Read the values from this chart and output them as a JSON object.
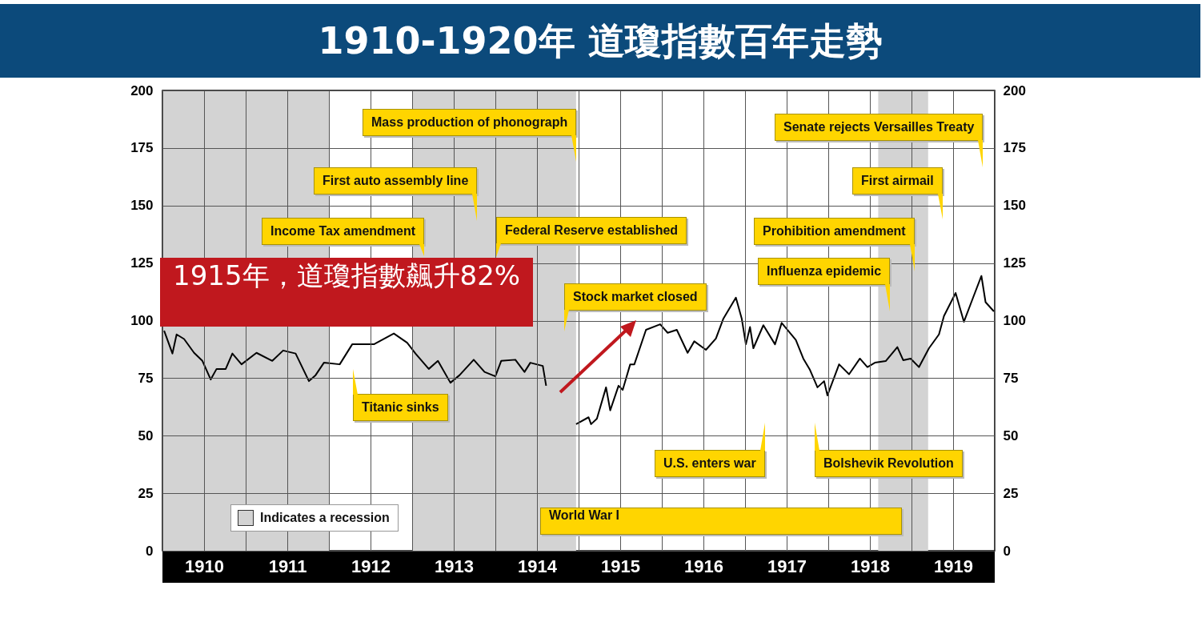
{
  "chart_data": {
    "type": "line",
    "title": "1910-1920年 道瓊指數百年走勢",
    "x": [
      1910.02,
      1910.12,
      1910.17,
      1910.26,
      1910.38,
      1910.48,
      1910.58,
      1910.65,
      1910.76,
      1910.84,
      1910.95,
      1911.13,
      1911.32,
      1911.45,
      1911.6,
      1911.76,
      1911.84,
      1911.94,
      1912.13,
      1912.28,
      1912.54,
      1912.78,
      1912.94,
      1913.04,
      1913.2,
      1913.31,
      1913.46,
      1913.57,
      1913.74,
      1913.87,
      1914.0,
      1914.07,
      1914.24,
      1914.35,
      1914.42,
      1914.57,
      1914.61,
      1914.8,
      1914.97,
      1915.12,
      1915.15,
      1915.22,
      1915.33,
      1915.38,
      1915.48,
      1915.53,
      1915.62,
      1915.67,
      1915.81,
      1915.98,
      1916.07,
      1916.18,
      1916.31,
      1916.39,
      1916.53,
      1916.65,
      1916.74,
      1916.89,
      1916.96,
      1917.01,
      1917.06,
      1917.1,
      1917.22,
      1917.36,
      1917.44,
      1917.61,
      1917.7,
      1917.78,
      1917.87,
      1917.95,
      1917.99,
      1918.13,
      1918.25,
      1918.38,
      1918.47,
      1918.56,
      1918.69,
      1918.83,
      1918.9,
      1918.99,
      1919.09,
      1919.21,
      1919.33,
      1919.39,
      1919.53,
      1919.63,
      1919.74,
      1919.84,
      1919.89,
      1919.99
    ],
    "series": [
      {
        "color": "#000000",
        "values": [
          95.6,
          85.7,
          94,
          92,
          86,
          82.5,
          74.4,
          79,
          79,
          85.7,
          81,
          86,
          82.5,
          87,
          85.7,
          73.7,
          76.3,
          81.7,
          81,
          89.7,
          89.7,
          94.4,
          90.4,
          85.7,
          79,
          82.5,
          73,
          76.3,
          83,
          77.7,
          75.8,
          82.5,
          83,
          77.7,
          81.7,
          80.3,
          71.7,
          null,
          55,
          58,
          55,
          57.4,
          71,
          61,
          71.7,
          69.9,
          81,
          81,
          96,
          98.4,
          94.7,
          96,
          86,
          91,
          87.3,
          92.2,
          100.9,
          110,
          100.9,
          89.7,
          97.2,
          88,
          98,
          89.7,
          99,
          91.6,
          83.5,
          78.6,
          71,
          73.7,
          67.5,
          81,
          76.7,
          83.5,
          79.8,
          81.7,
          82.4,
          88.5,
          82.8,
          83.5,
          79.8,
          88,
          94,
          102,
          112,
          99.5,
          110,
          119.4,
          108,
          104
        ]
      }
    ],
    "xlim": [
      1910,
      1920
    ],
    "xticks": [
      {
        "value": 1910,
        "label": null
      },
      {
        "value": 1910.5,
        "label": "1910"
      },
      {
        "value": 1911,
        "label": null
      },
      {
        "value": 1911.5,
        "label": "1911"
      },
      {
        "value": 1912,
        "label": null
      },
      {
        "value": 1912.5,
        "label": "1912"
      },
      {
        "value": 1913,
        "label": null
      },
      {
        "value": 1913.5,
        "label": "1913"
      },
      {
        "value": 1914,
        "label": null
      },
      {
        "value": 1914.5,
        "label": "1914"
      },
      {
        "value": 1915,
        "label": null
      },
      {
        "value": 1915.5,
        "label": "1915"
      },
      {
        "value": 1916,
        "label": null
      },
      {
        "value": 1916.5,
        "label": "1916"
      },
      {
        "value": 1917,
        "label": null
      },
      {
        "value": 1917.5,
        "label": "1917"
      },
      {
        "value": 1918,
        "label": null
      },
      {
        "value": 1918.5,
        "label": "1918"
      },
      {
        "value": 1919,
        "label": null
      },
      {
        "value": 1919.5,
        "label": "1919"
      },
      {
        "value": 1920,
        "label": null
      }
    ],
    "ylim": [
      0,
      200
    ],
    "yticks": [
      0,
      25,
      50,
      75,
      100,
      125,
      150,
      175,
      200
    ],
    "y2lim": [
      0,
      200
    ],
    "y2ticks": [
      0,
      25,
      50,
      75,
      100,
      125,
      150,
      175,
      200
    ],
    "bands": [
      {
        "axis": "x",
        "from": 1910,
        "to": 1912,
        "color": "#d3d3d3"
      },
      {
        "axis": "x",
        "from": 1913,
        "to": 1914.97,
        "color": "#d3d3d3"
      },
      {
        "axis": "x",
        "from": 1918.6,
        "to": 1919.2,
        "color": "#d3d3d3"
      }
    ],
    "annotations": [
      "Mass production of phonograph",
      "First auto assembly line",
      "Income Tax amendment",
      "Federal Reserve established",
      "Stock market closed",
      "Titanic sinks",
      "U.S. enters war",
      "Bolshevik Revolution",
      "Senate rejects Versailles Treaty",
      "First airmail",
      "Prohibition amendment",
      "Influenza epidemic",
      "1915年，道瓊指數飆升82%",
      "World War I",
      "Indicates a recession"
    ],
    "grid": true
  }
}
